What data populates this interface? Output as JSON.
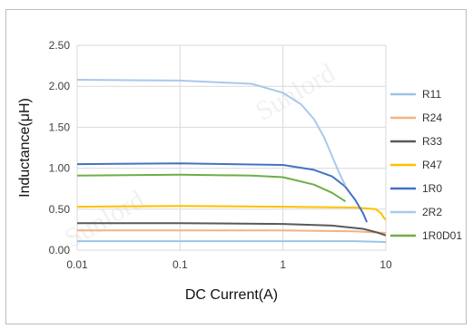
{
  "chart_data": {
    "type": "line",
    "title": "",
    "xlabel": "DC  Current(A)",
    "ylabel": "Inductance(μH)",
    "xscale": "log",
    "xlim": [
      0.01,
      10
    ],
    "ylim": [
      0,
      2.5
    ],
    "x_ticks": [
      "0.01",
      "0.1",
      "1",
      "10"
    ],
    "y_ticks": [
      "0.00",
      "0.50",
      "1.00",
      "1.50",
      "2.00",
      "2.50"
    ],
    "grid": "on",
    "legend_position": "right",
    "series": [
      {
        "name": "R11",
        "color": "#9dc3e6",
        "x": [
          0.01,
          0.1,
          1,
          5,
          10
        ],
        "y": [
          0.11,
          0.11,
          0.11,
          0.11,
          0.1
        ]
      },
      {
        "name": "R24",
        "color": "#f4b183",
        "x": [
          0.01,
          0.1,
          1,
          5,
          10
        ],
        "y": [
          0.24,
          0.24,
          0.24,
          0.23,
          0.21
        ]
      },
      {
        "name": "R33",
        "color": "#595959",
        "x": [
          0.01,
          0.1,
          1,
          3,
          6,
          8,
          10
        ],
        "y": [
          0.33,
          0.33,
          0.32,
          0.3,
          0.26,
          0.22,
          0.18
        ]
      },
      {
        "name": "R47",
        "color": "#ffc000",
        "x": [
          0.01,
          0.1,
          1,
          5,
          8,
          9,
          9.5,
          10
        ],
        "y": [
          0.53,
          0.54,
          0.53,
          0.52,
          0.5,
          0.45,
          0.4,
          0.37
        ]
      },
      {
        "name": "1R0",
        "color": "#4472c4",
        "x": [
          0.01,
          0.1,
          1,
          2,
          3,
          4,
          5,
          6,
          6.5
        ],
        "y": [
          1.05,
          1.06,
          1.04,
          0.98,
          0.9,
          0.78,
          0.62,
          0.45,
          0.35
        ]
      },
      {
        "name": "2R2",
        "color": "#a9c8ec",
        "x": [
          0.01,
          0.1,
          0.5,
          1,
          1.5,
          2,
          2.5,
          3,
          3.5,
          4
        ],
        "y": [
          2.08,
          2.07,
          2.03,
          1.92,
          1.78,
          1.6,
          1.38,
          1.15,
          0.95,
          0.8
        ]
      },
      {
        "name": "1R0D01",
        "color": "#70ad47",
        "x": [
          0.01,
          0.1,
          0.5,
          1,
          2,
          3,
          4
        ],
        "y": [
          0.91,
          0.92,
          0.91,
          0.89,
          0.8,
          0.7,
          0.6
        ]
      }
    ]
  },
  "watermark": "Sunlord"
}
